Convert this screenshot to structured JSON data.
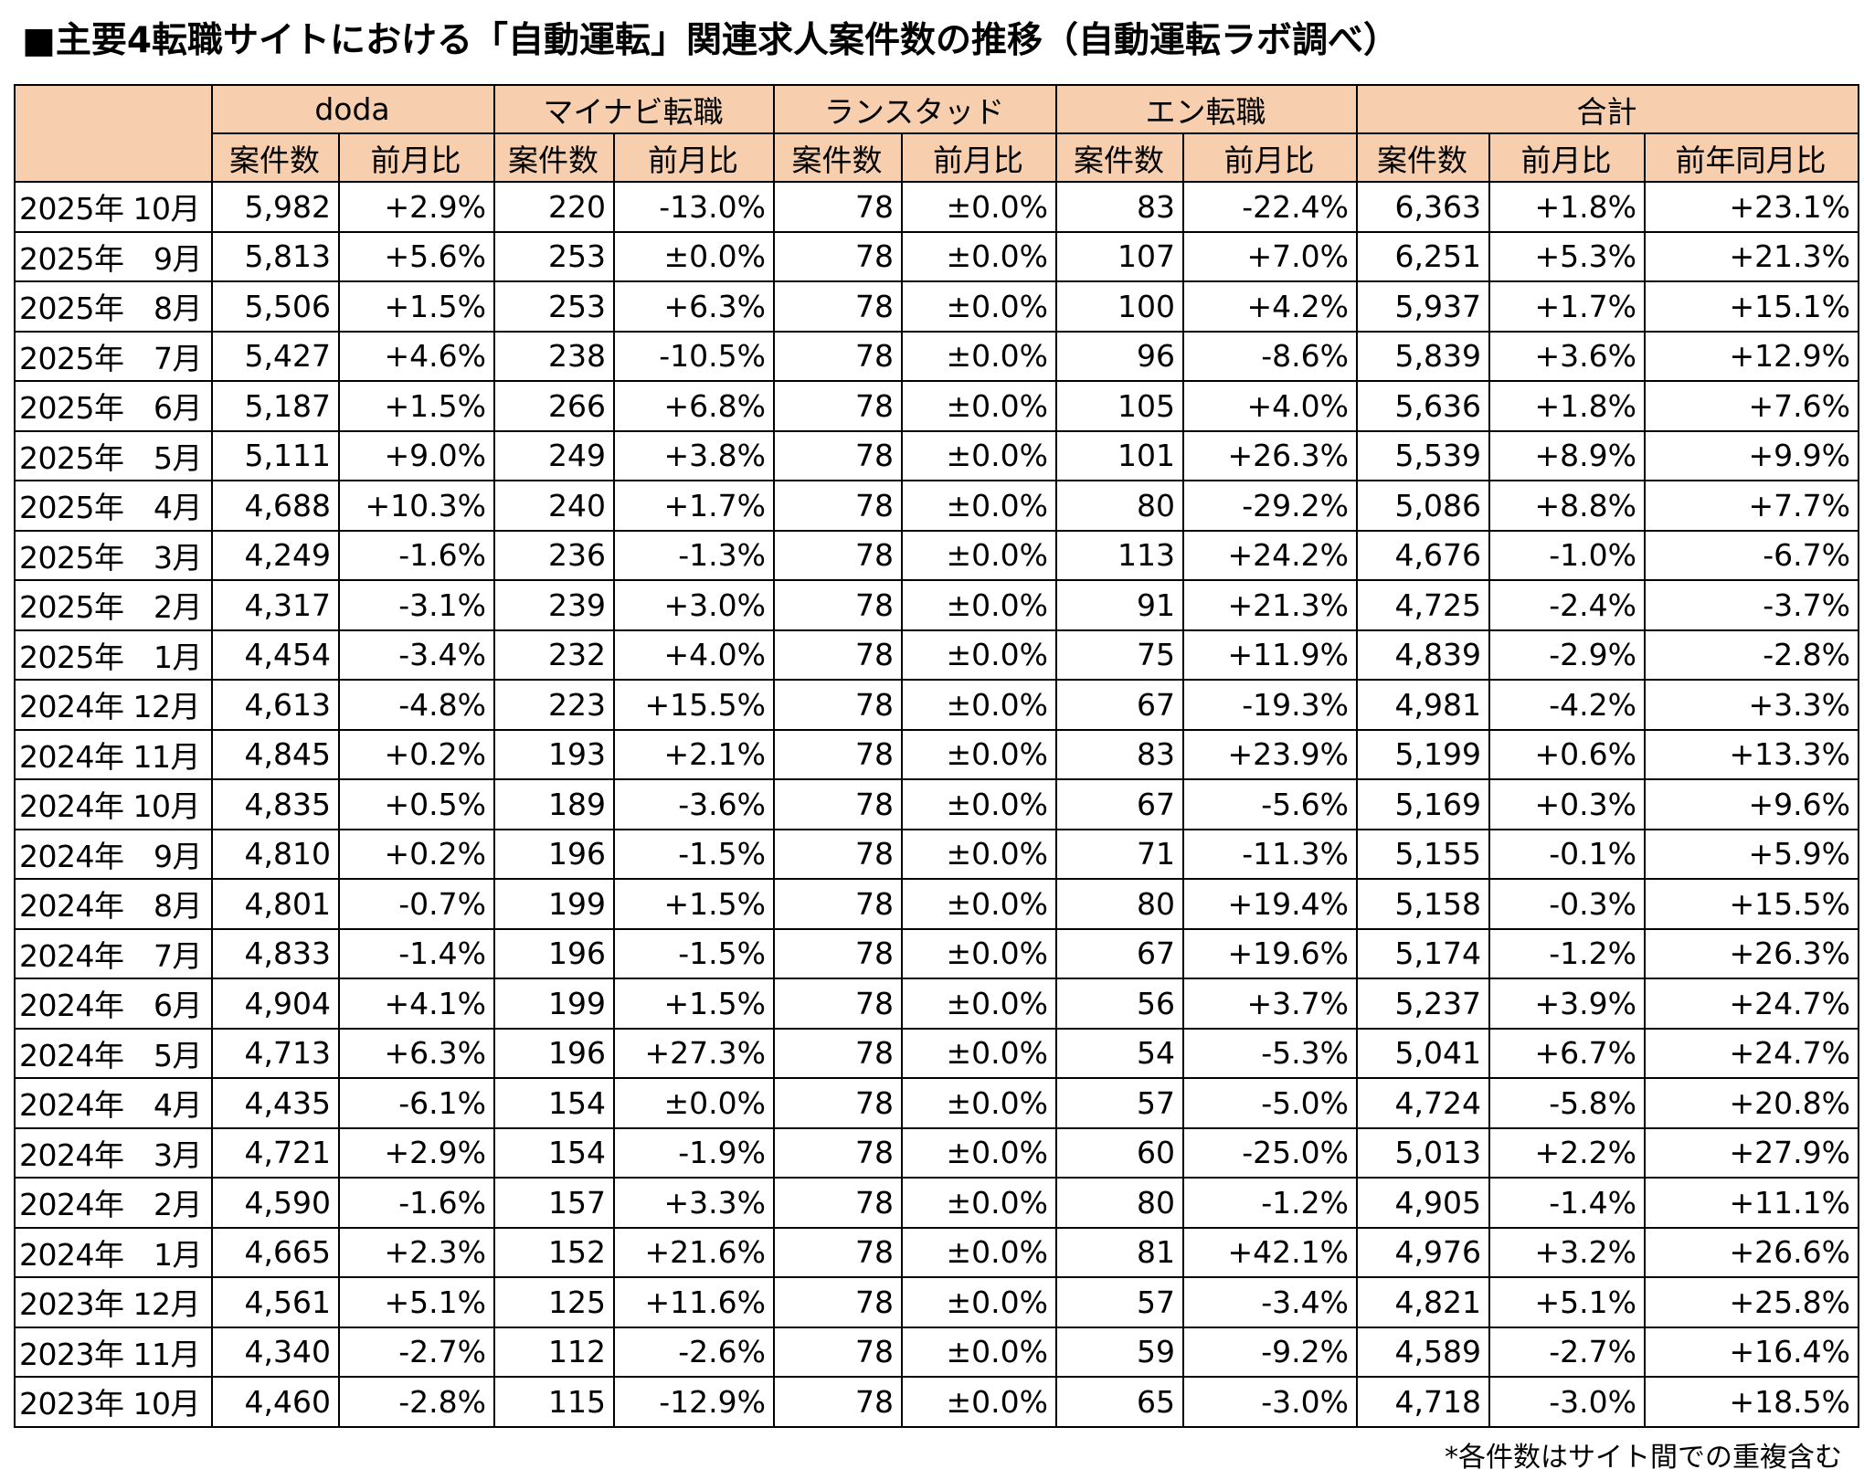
{
  "title": "■主要4転職サイトにおける「自動運転」関連求人案件数の推移（自動運転ラボ調べ）",
  "header": {
    "sites": [
      "doda",
      "マイナビ転職",
      "ランスタッド",
      "エン転職",
      "合計"
    ],
    "sub": [
      "案件数",
      "前月比",
      "案件数",
      "前月比",
      "案件数",
      "前月比",
      "案件数",
      "前月比",
      "案件数",
      "前月比",
      "前年同月比"
    ]
  },
  "rows": [
    [
      "2025年 10月",
      "5,982",
      "+2.9%",
      "220",
      "-13.0%",
      "78",
      "±0.0%",
      "83",
      "-22.4%",
      "6,363",
      "+1.8%",
      "+23.1%"
    ],
    [
      "2025年　9月",
      "5,813",
      "+5.6%",
      "253",
      "±0.0%",
      "78",
      "±0.0%",
      "107",
      "+7.0%",
      "6,251",
      "+5.3%",
      "+21.3%"
    ],
    [
      "2025年　8月",
      "5,506",
      "+1.5%",
      "253",
      "+6.3%",
      "78",
      "±0.0%",
      "100",
      "+4.2%",
      "5,937",
      "+1.7%",
      "+15.1%"
    ],
    [
      "2025年　7月",
      "5,427",
      "+4.6%",
      "238",
      "-10.5%",
      "78",
      "±0.0%",
      "96",
      "-8.6%",
      "5,839",
      "+3.6%",
      "+12.9%"
    ],
    [
      "2025年　6月",
      "5,187",
      "+1.5%",
      "266",
      "+6.8%",
      "78",
      "±0.0%",
      "105",
      "+4.0%",
      "5,636",
      "+1.8%",
      "+7.6%"
    ],
    [
      "2025年　5月",
      "5,111",
      "+9.0%",
      "249",
      "+3.8%",
      "78",
      "±0.0%",
      "101",
      "+26.3%",
      "5,539",
      "+8.9%",
      "+9.9%"
    ],
    [
      "2025年　4月",
      "4,688",
      "+10.3%",
      "240",
      "+1.7%",
      "78",
      "±0.0%",
      "80",
      "-29.2%",
      "5,086",
      "+8.8%",
      "+7.7%"
    ],
    [
      "2025年　3月",
      "4,249",
      "-1.6%",
      "236",
      "-1.3%",
      "78",
      "±0.0%",
      "113",
      "+24.2%",
      "4,676",
      "-1.0%",
      "-6.7%"
    ],
    [
      "2025年　2月",
      "4,317",
      "-3.1%",
      "239",
      "+3.0%",
      "78",
      "±0.0%",
      "91",
      "+21.3%",
      "4,725",
      "-2.4%",
      "-3.7%"
    ],
    [
      "2025年　1月",
      "4,454",
      "-3.4%",
      "232",
      "+4.0%",
      "78",
      "±0.0%",
      "75",
      "+11.9%",
      "4,839",
      "-2.9%",
      "-2.8%"
    ],
    [
      "2024年 12月",
      "4,613",
      "-4.8%",
      "223",
      "+15.5%",
      "78",
      "±0.0%",
      "67",
      "-19.3%",
      "4,981",
      "-4.2%",
      "+3.3%"
    ],
    [
      "2024年 11月",
      "4,845",
      "+0.2%",
      "193",
      "+2.1%",
      "78",
      "±0.0%",
      "83",
      "+23.9%",
      "5,199",
      "+0.6%",
      "+13.3%"
    ],
    [
      "2024年 10月",
      "4,835",
      "+0.5%",
      "189",
      "-3.6%",
      "78",
      "±0.0%",
      "67",
      "-5.6%",
      "5,169",
      "+0.3%",
      "+9.6%"
    ],
    [
      "2024年　9月",
      "4,810",
      "+0.2%",
      "196",
      "-1.5%",
      "78",
      "±0.0%",
      "71",
      "-11.3%",
      "5,155",
      "-0.1%",
      "+5.9%"
    ],
    [
      "2024年　8月",
      "4,801",
      "-0.7%",
      "199",
      "+1.5%",
      "78",
      "±0.0%",
      "80",
      "+19.4%",
      "5,158",
      "-0.3%",
      "+15.5%"
    ],
    [
      "2024年　7月",
      "4,833",
      "-1.4%",
      "196",
      "-1.5%",
      "78",
      "±0.0%",
      "67",
      "+19.6%",
      "5,174",
      "-1.2%",
      "+26.3%"
    ],
    [
      "2024年　6月",
      "4,904",
      "+4.1%",
      "199",
      "+1.5%",
      "78",
      "±0.0%",
      "56",
      "+3.7%",
      "5,237",
      "+3.9%",
      "+24.7%"
    ],
    [
      "2024年　5月",
      "4,713",
      "+6.3%",
      "196",
      "+27.3%",
      "78",
      "±0.0%",
      "54",
      "-5.3%",
      "5,041",
      "+6.7%",
      "+24.7%"
    ],
    [
      "2024年　4月",
      "4,435",
      "-6.1%",
      "154",
      "±0.0%",
      "78",
      "±0.0%",
      "57",
      "-5.0%",
      "4,724",
      "-5.8%",
      "+20.8%"
    ],
    [
      "2024年　3月",
      "4,721",
      "+2.9%",
      "154",
      "-1.9%",
      "78",
      "±0.0%",
      "60",
      "-25.0%",
      "5,013",
      "+2.2%",
      "+27.9%"
    ],
    [
      "2024年　2月",
      "4,590",
      "-1.6%",
      "157",
      "+3.3%",
      "78",
      "±0.0%",
      "80",
      "-1.2%",
      "4,905",
      "-1.4%",
      "+11.1%"
    ],
    [
      "2024年　1月",
      "4,665",
      "+2.3%",
      "152",
      "+21.6%",
      "78",
      "±0.0%",
      "81",
      "+42.1%",
      "4,976",
      "+3.2%",
      "+26.6%"
    ],
    [
      "2023年 12月",
      "4,561",
      "+5.1%",
      "125",
      "+11.6%",
      "78",
      "±0.0%",
      "57",
      "-3.4%",
      "4,821",
      "+5.1%",
      "+25.8%"
    ],
    [
      "2023年 11月",
      "4,340",
      "-2.7%",
      "112",
      "-2.6%",
      "78",
      "±0.0%",
      "59",
      "-9.2%",
      "4,589",
      "-2.7%",
      "+16.4%"
    ],
    [
      "2023年 10月",
      "4,460",
      "-2.8%",
      "115",
      "-12.9%",
      "78",
      "±0.0%",
      "65",
      "-3.0%",
      "4,718",
      "-3.0%",
      "+18.5%"
    ]
  ],
  "footnote": "*各件数はサイト間での重複含む",
  "colors": {
    "header_bg": "#f7cfae",
    "border": "#000000",
    "text": "#000000"
  }
}
